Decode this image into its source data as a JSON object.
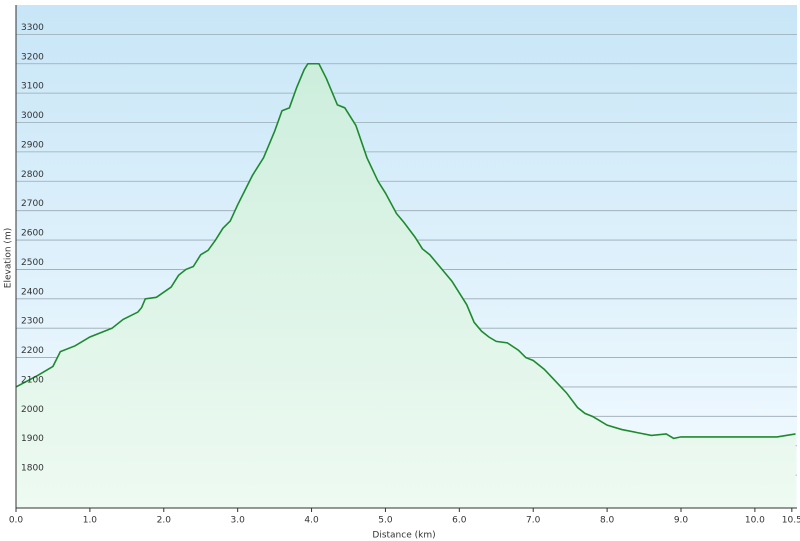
{
  "chart_data": {
    "type": "area",
    "x_label": "Distance  (km)",
    "y_label": "Elevation (m)",
    "x": [
      0,
      0.3,
      0.5,
      0.6,
      0.8,
      1.0,
      1.2,
      1.3,
      1.45,
      1.65,
      1.7,
      1.75,
      1.9,
      2.1,
      2.2,
      2.3,
      2.4,
      2.5,
      2.6,
      2.7,
      2.8,
      2.9,
      3.0,
      3.1,
      3.2,
      3.35,
      3.5,
      3.6,
      3.7,
      3.8,
      3.9,
      3.95,
      4.1,
      4.2,
      4.35,
      4.45,
      4.6,
      4.75,
      4.9,
      5.0,
      5.15,
      5.25,
      5.4,
      5.5,
      5.6,
      5.8,
      5.9,
      6.0,
      6.1,
      6.2,
      6.3,
      6.4,
      6.5,
      6.65,
      6.8,
      6.9,
      7.0,
      7.15,
      7.3,
      7.45,
      7.6,
      7.7,
      7.8,
      7.9,
      8.0,
      8.2,
      8.4,
      8.6,
      8.8,
      8.9,
      9.0,
      9.5,
      10.0,
      10.3,
      10.55
    ],
    "series": [
      {
        "name": "Elevation",
        "color": "#1e8a2e",
        "values": [
          2100,
          2140,
          2170,
          2220,
          2240,
          2270,
          2290,
          2300,
          2330,
          2355,
          2370,
          2400,
          2405,
          2440,
          2480,
          2500,
          2510,
          2550,
          2565,
          2600,
          2640,
          2665,
          2720,
          2770,
          2820,
          2880,
          2970,
          3040,
          3050,
          3120,
          3180,
          3200,
          3200,
          3150,
          3060,
          3050,
          2990,
          2880,
          2800,
          2760,
          2690,
          2660,
          2610,
          2570,
          2550,
          2490,
          2460,
          2420,
          2380,
          2320,
          2290,
          2270,
          2255,
          2250,
          2225,
          2200,
          2190,
          2160,
          2120,
          2080,
          2030,
          2010,
          2000,
          1985,
          1970,
          1955,
          1945,
          1935,
          1940,
          1925,
          1930,
          1930,
          1930,
          1930,
          1940
        ]
      }
    ],
    "xlim": [
      0,
      10.57
    ],
    "ylim": [
      1688,
      3400
    ],
    "xticks": [
      {
        "value": 0,
        "label": "0.0"
      },
      {
        "value": 1,
        "label": "1.0"
      },
      {
        "value": 2,
        "label": "2.0"
      },
      {
        "value": 3,
        "label": "3.0"
      },
      {
        "value": 4,
        "label": "4.0"
      },
      {
        "value": 5,
        "label": "5.0"
      },
      {
        "value": 6,
        "label": "6.0"
      },
      {
        "value": 7,
        "label": "7.0"
      },
      {
        "value": 8,
        "label": "8.0"
      },
      {
        "value": 9,
        "label": "9.0"
      },
      {
        "value": 10,
        "label": "10.0"
      },
      10.5
    ],
    "yticks": [
      1800,
      1900,
      2000,
      2100,
      2200,
      2300,
      2400,
      2500,
      2600,
      2700,
      2800,
      2900,
      3000,
      3100,
      3200,
      3300
    ],
    "grid": true
  }
}
